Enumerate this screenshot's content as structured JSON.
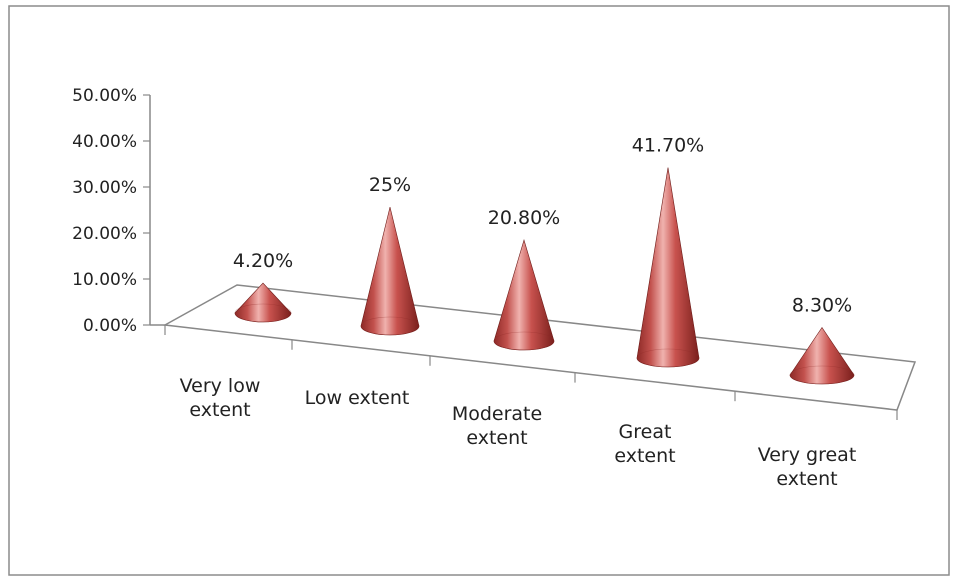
{
  "chart_data": {
    "type": "bar",
    "style": "3d-cone",
    "title": "",
    "xlabel": "",
    "ylabel": "",
    "categories": [
      [
        "Very low",
        "extent"
      ],
      [
        "Low extent"
      ],
      [
        "Moderate",
        "extent"
      ],
      [
        "Great",
        "extent"
      ],
      [
        "Very great",
        "extent"
      ]
    ],
    "values": [
      4.2,
      25,
      20.8,
      41.7,
      8.3
    ],
    "data_labels": [
      "4.20%",
      "25%",
      "20.80%",
      "41.70%",
      "8.30%"
    ],
    "ylim": [
      0,
      50
    ],
    "yticks": [
      0,
      10,
      20,
      30,
      40,
      50
    ],
    "ytick_labels": [
      "0.00%",
      "10.00%",
      "20.00%",
      "30.00%",
      "40.00%",
      "50.00%"
    ],
    "grid": false,
    "legend": "none",
    "colors": {
      "cone": "#c0504d",
      "cone_light": "#f2b9b5",
      "cone_dark": "#7a1f1c",
      "axis": "#888888",
      "frame": "#8c8c8c"
    }
  }
}
